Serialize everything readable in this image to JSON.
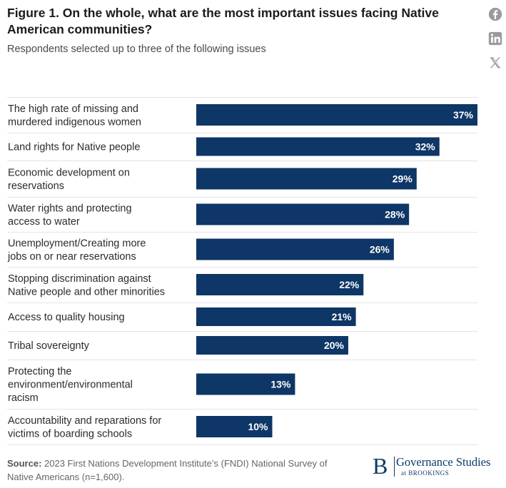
{
  "header": {
    "title": "Figure 1. On the whole, what are the most important issues facing Native American communities?",
    "subtitle": "Respondents selected up to three of the following issues"
  },
  "share": {
    "facebook_icon": "facebook-icon",
    "linkedin_icon": "linkedin-icon",
    "x_icon": "x-icon"
  },
  "chart_data": {
    "type": "bar",
    "orientation": "horizontal",
    "categories": [
      [
        "The high rate of missing and",
        "murdered indigenous women"
      ],
      [
        "Land rights for Native people"
      ],
      [
        "Economic development on",
        "reservations"
      ],
      [
        "Water rights and protecting",
        "access to water"
      ],
      [
        "Unemployment/Creating more",
        "jobs on or near reservations"
      ],
      [
        "Stopping discrimination against",
        "Native people and other minorities"
      ],
      [
        "Access to quality housing"
      ],
      [
        "Tribal sovereignty"
      ],
      [
        "Protecting the",
        "environment/environmental",
        "racism"
      ],
      [
        "Accountability and reparations for",
        "victims of boarding schools"
      ]
    ],
    "values": [
      37,
      32,
      29,
      28,
      26,
      22,
      21,
      20,
      13,
      10
    ],
    "value_labels": [
      "37%",
      "32%",
      "29%",
      "28%",
      "26%",
      "22%",
      "21%",
      "20%",
      "13%",
      "10%"
    ],
    "xlim": [
      0,
      37
    ],
    "bar_color": "#0e3667",
    "label_color": "#ffffff",
    "grid": false
  },
  "footer": {
    "source_label": "Source:",
    "source_text": " 2023 First Nations Development Institute’s (FNDI) National Survey of Native Americans (n=1,600).",
    "brand_mark": "B",
    "brand_name": "Governance Studies",
    "brand_sub": "at BROOKINGS"
  }
}
